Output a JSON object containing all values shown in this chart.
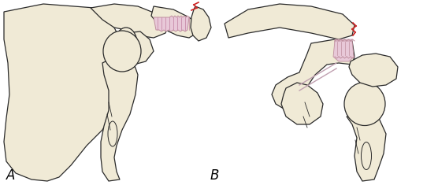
{
  "background_color": "#ffffff",
  "bone_fill": "#f0ead6",
  "bone_outline": "#2a2a2a",
  "ligament_fill": "#e8c8d8",
  "ligament_outline": "#b08090",
  "fracture_color": "#cc2222",
  "label_A": "A",
  "label_B": "B",
  "label_fontsize": 12,
  "fig_width": 5.56,
  "fig_height": 2.35,
  "dpi": 100
}
